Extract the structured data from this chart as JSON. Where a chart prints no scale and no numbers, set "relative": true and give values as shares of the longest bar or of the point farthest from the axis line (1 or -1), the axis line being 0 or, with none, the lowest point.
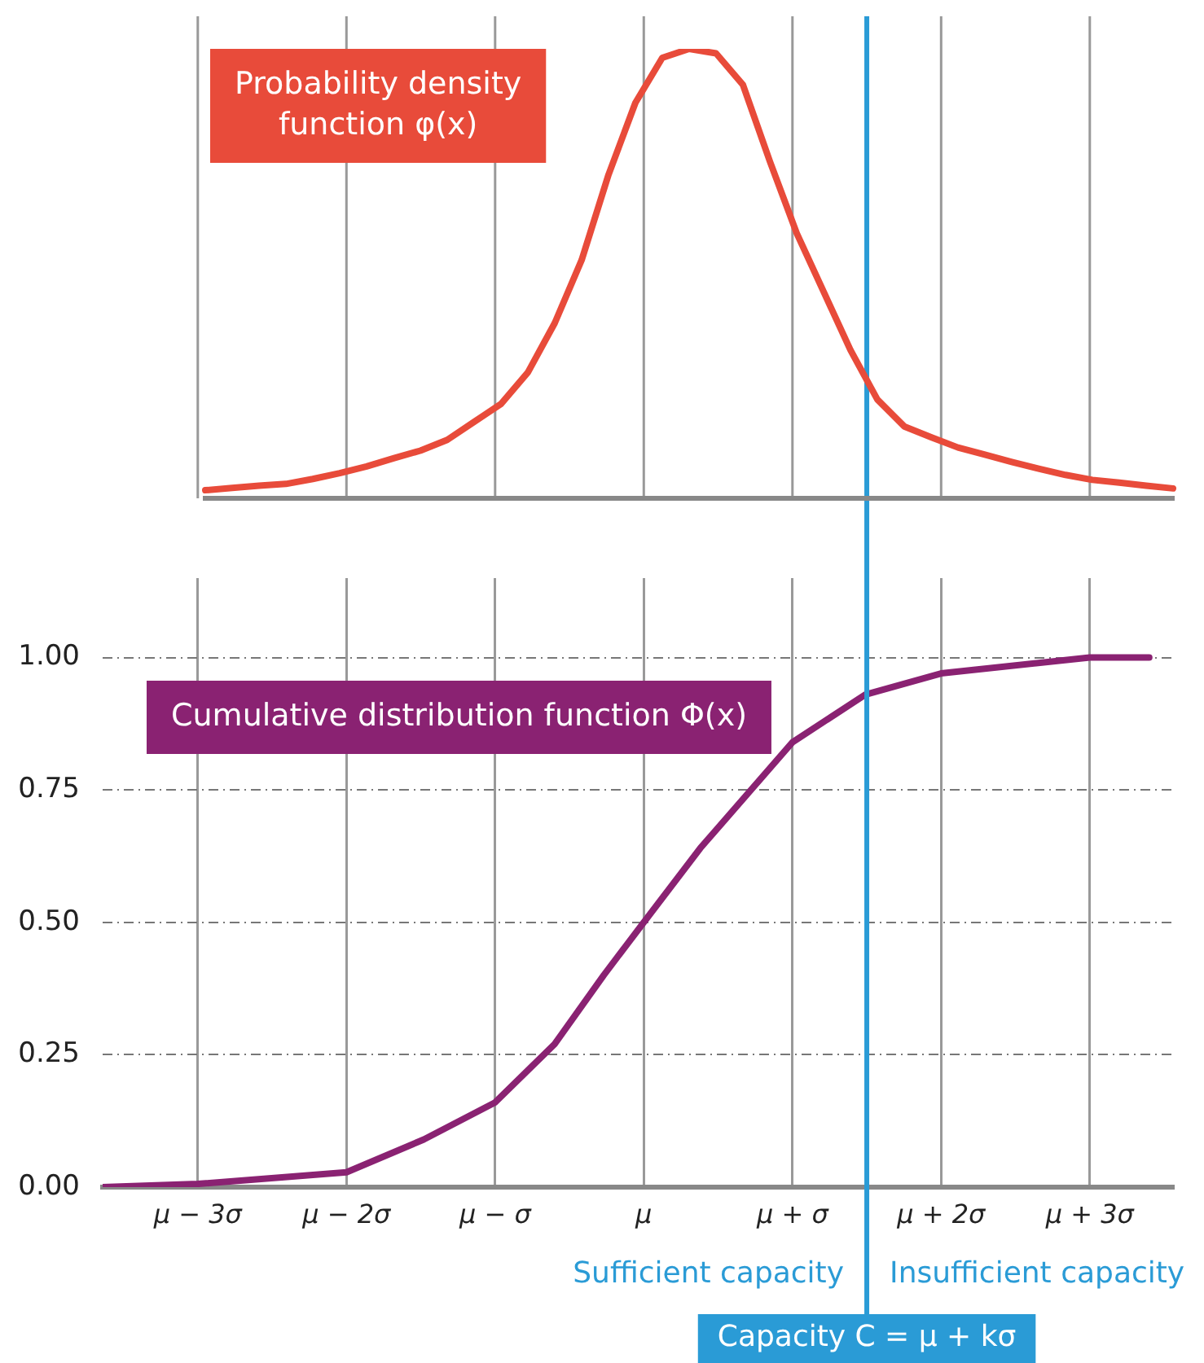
{
  "chart_data": [
    {
      "type": "line",
      "relative": true,
      "categories": [
        null,
        null,
        null,
        null,
        null,
        null,
        null,
        null,
        null,
        null,
        null,
        null,
        null,
        null,
        null,
        null,
        null,
        null,
        null,
        null,
        null,
        null,
        null,
        null,
        null,
        null,
        null,
        null,
        null,
        null,
        null,
        null,
        null,
        null,
        null,
        null,
        null
      ],
      "tick_labels": false,
      "marker": "none",
      "series": [
        {
          "name": "Probability density function φ(x)",
          "color": "#e84b3a",
          "values": [
            0.018,
            0.023,
            0.028,
            0.032,
            0.043,
            0.056,
            0.071,
            0.089,
            0.106,
            0.13,
            0.17,
            0.21,
            0.28,
            0.39,
            0.53,
            0.72,
            0.88,
            0.98,
            1,
            0.99,
            0.92,
            0.75,
            0.59,
            0.46,
            0.33,
            0.22,
            0.16,
            0.136,
            0.113,
            0.097,
            0.081,
            0.066,
            0.052,
            0.041,
            0.035,
            0.028,
            0.022
          ]
        }
      ]
    },
    {
      "type": "line",
      "xlim": [
        -3.64,
        3.56
      ],
      "xticks": [
        {
          "value": -3,
          "label": "μ − 3σ"
        },
        {
          "value": -2,
          "label": "μ − 2σ"
        },
        {
          "value": -1,
          "label": "μ − σ"
        },
        {
          "value": 0,
          "label": "μ"
        },
        {
          "value": 1,
          "label": "μ + σ"
        },
        {
          "value": 2,
          "label": "μ + 2σ"
        },
        {
          "value": 3,
          "label": "μ + 3σ"
        }
      ],
      "ylim": [
        0,
        1.15
      ],
      "yticks": [
        {
          "value": 0,
          "label": "0.00"
        },
        {
          "value": 0.25,
          "label": "0.25"
        },
        {
          "value": 0.5,
          "label": "0.50"
        },
        {
          "value": 0.75,
          "label": "0.75"
        },
        {
          "value": 1,
          "label": "1.00"
        }
      ],
      "grid": true,
      "marker": "none",
      "series": [
        {
          "name": "Cumulative distribution function Φ(x)",
          "color": "#8a2272",
          "x": [
            -3.64,
            -3,
            -2,
            -1.48,
            -1,
            -0.6,
            -0.27,
            0,
            0.38,
            1,
            1.49,
            2,
            3,
            3.4
          ],
          "values": [
            0,
            0.006,
            0.028,
            0.09,
            0.16,
            0.27,
            0.4,
            0.5,
            0.64,
            0.84,
            0.93,
            0.97,
            1,
            1
          ]
        }
      ],
      "ref_lines": [
        {
          "axis": "x",
          "value": 1.5,
          "label": "Capacity C = μ + kσ",
          "color": "#2a9bd6"
        }
      ],
      "annotations": [
        "Sufficient capacity",
        "Insufficient capacity"
      ]
    }
  ]
}
